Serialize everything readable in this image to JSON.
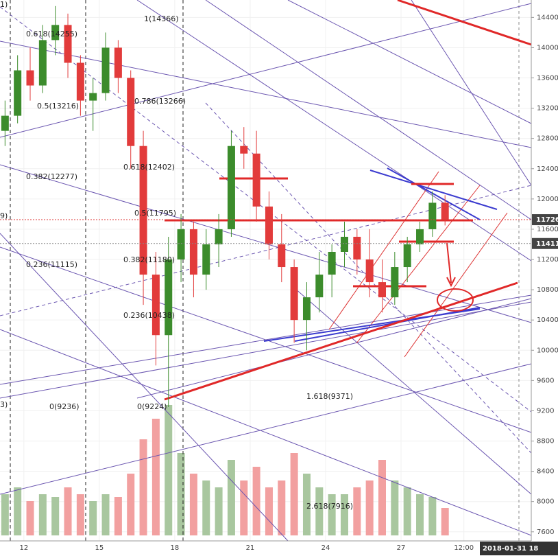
{
  "chart_data": {
    "type": "candlestick",
    "x": [
      11.25,
      11.75,
      12.25,
      12.75,
      13.25,
      13.75,
      14.25,
      14.75,
      15.25,
      15.75,
      16.25,
      16.75,
      17.25,
      17.75,
      18.25,
      18.75,
      19.25,
      19.75,
      20.25,
      20.75,
      21.25,
      21.75,
      22.25,
      22.75,
      23.25,
      23.75,
      24.25,
      24.75,
      25.25,
      25.75,
      26.25,
      26.75,
      27.25,
      27.75,
      28.25,
      28.75
    ],
    "open": [
      12900,
      13100,
      13700,
      13500,
      14100,
      14300,
      13800,
      13300,
      13400,
      14000,
      13600,
      12700,
      11000,
      10200,
      11200,
      11600,
      11000,
      11400,
      11600,
      12700,
      12600,
      11900,
      11400,
      11100,
      10400,
      10700,
      11000,
      11300,
      11500,
      11200,
      10900,
      10700,
      11100,
      11400,
      11600,
      11950
    ],
    "high": [
      13300,
      13900,
      14000,
      14300,
      14550,
      14450,
      13900,
      13600,
      14200,
      14100,
      13700,
      12900,
      11300,
      11500,
      11800,
      11700,
      11600,
      11800,
      12900,
      12950,
      12900,
      12100,
      11800,
      11200,
      10900,
      11300,
      11400,
      11700,
      11600,
      11600,
      11200,
      11300,
      11500,
      11700,
      12100,
      12050
    ],
    "low": [
      12700,
      13000,
      13300,
      13400,
      13900,
      13600,
      13100,
      12900,
      13300,
      13400,
      12400,
      10600,
      9800,
      9250,
      10900,
      10700,
      10800,
      11100,
      11500,
      12400,
      11700,
      11200,
      10900,
      10100,
      10000,
      10500,
      10700,
      11100,
      11000,
      10700,
      10500,
      10600,
      10900,
      11300,
      11500,
      11650
    ],
    "close": [
      13100,
      13700,
      13500,
      14100,
      14300,
      13800,
      13300,
      13400,
      14000,
      13600,
      12700,
      11000,
      10200,
      11200,
      11600,
      11000,
      11400,
      11600,
      12700,
      12600,
      11900,
      11400,
      11100,
      10400,
      10700,
      11000,
      11300,
      11500,
      11200,
      10900,
      10700,
      11100,
      11400,
      11600,
      11950,
      11726
    ],
    "volume": [
      30,
      35,
      25,
      30,
      28,
      35,
      30,
      25,
      30,
      28,
      45,
      70,
      85,
      95,
      60,
      45,
      40,
      35,
      55,
      40,
      50,
      35,
      40,
      60,
      45,
      35,
      30,
      30,
      35,
      40,
      55,
      40,
      35,
      30,
      28,
      20
    ],
    "up_color": "#3c8c2c",
    "down_color": "#e23b3b",
    "volume_up_color": "#a9c79f",
    "volume_down_color": "#f2a0a0",
    "xlim": [
      11.05,
      32.18
    ],
    "xticks": [
      12,
      15,
      18,
      21,
      24,
      27,
      {
        "value": 29.5,
        "label": "12:00"
      }
    ],
    "ylim": [
      7480,
      14630
    ],
    "yticks": [
      7600,
      8000,
      8400,
      8800,
      9200,
      9600,
      10000,
      10400,
      10800,
      11200,
      11600,
      12000,
      12400,
      12800,
      13200,
      13600,
      14000,
      14400
    ],
    "price_flags": [
      11726,
      11411
    ],
    "cursor_label": "2018-01-31 18",
    "annotations": [
      "1)",
      "0.618(14255)",
      "1(14366)",
      "0.5(13216)",
      "0.786(13266)",
      "0.382(12277)",
      "0.618(12402)",
      "9)",
      "0.5(11795)",
      "0.236(11115)",
      "0.382(11180)",
      "0.236(10438)",
      "3)",
      "0(9236)",
      "0(9224)",
      "1.618(9371)",
      "2.618(7916)"
    ]
  }
}
